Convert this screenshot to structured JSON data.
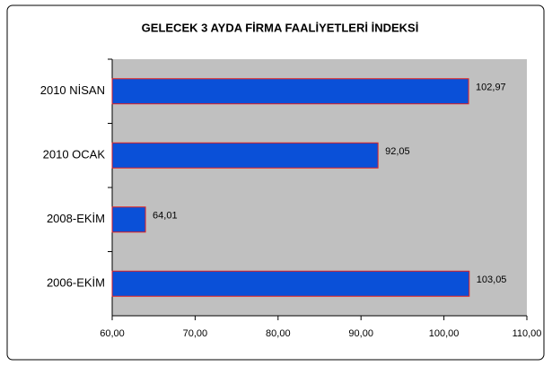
{
  "chart_data": {
    "type": "bar",
    "orientation": "horizontal",
    "title": "GELECEK 3 AYDA FİRMA FAALİYETLERİ İNDEKSİ",
    "categories": [
      "2010 NİSAN",
      "2010 OCAK",
      "2008-EKİM",
      "2006-EKİM"
    ],
    "values": [
      102.97,
      92.05,
      64.01,
      103.05
    ],
    "value_labels": [
      "102,97",
      "92,05",
      "64,01",
      "103,05"
    ],
    "color": "#0a50d8",
    "edge_color": "#e02020",
    "plot_background": "#c0c0c0",
    "xlim": [
      60,
      110
    ],
    "xticks": [
      {
        "value": 60,
        "label": "60,00"
      },
      {
        "value": 70,
        "label": "70,00"
      },
      {
        "value": 80,
        "label": "80,00"
      },
      {
        "value": 90,
        "label": "90,00"
      },
      {
        "value": 100,
        "label": "100,00"
      },
      {
        "value": 110,
        "label": "110,00"
      }
    ]
  }
}
